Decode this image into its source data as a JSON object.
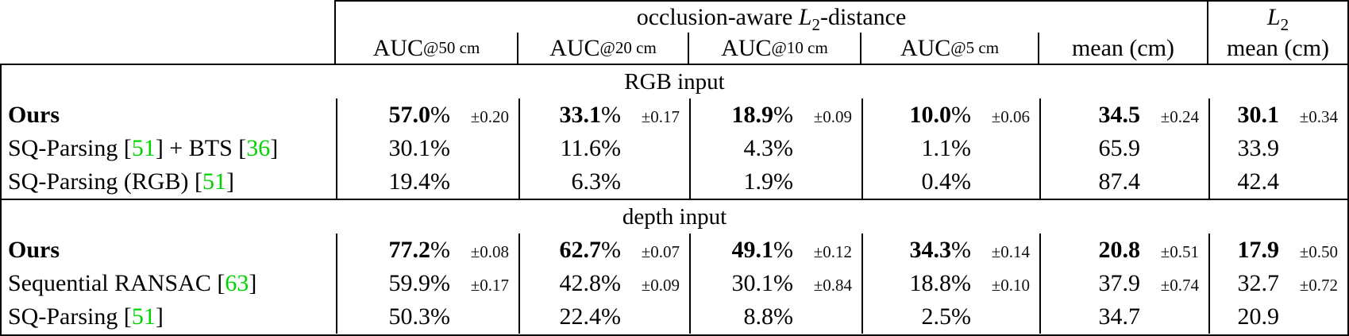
{
  "colors": {
    "citation_green": "#00d400",
    "border_black": "#000000",
    "text_black": "#000000",
    "background": "#ffffff"
  },
  "header": {
    "group1": {
      "title_prefix": "occlusion-aware ",
      "math_L": "L",
      "math_sub": "2",
      "title_suffix": "-distance",
      "cols": [
        {
          "base": "AUC",
          "sub": "@50 cm"
        },
        {
          "base": "AUC",
          "sub": "@20 cm"
        },
        {
          "base": "AUC",
          "sub": "@10 cm"
        },
        {
          "base": "AUC",
          "sub": "@5 cm"
        },
        {
          "label": "mean (cm)"
        }
      ]
    },
    "group2": {
      "math_L": "L",
      "math_sub": "2",
      "label": "mean (cm)"
    }
  },
  "sections": [
    {
      "title": "RGB input",
      "rows": [
        {
          "bold": true,
          "label": [
            {
              "t": "Ours"
            }
          ],
          "cells": [
            {
              "v": "57.0",
              "u": "%",
              "pm": "±0.20"
            },
            {
              "v": "33.1",
              "u": "%",
              "pm": "±0.17"
            },
            {
              "v": "18.9",
              "u": "%",
              "pm": "±0.09"
            },
            {
              "v": "10.0",
              "u": "%",
              "pm": "±0.06"
            },
            {
              "v": "34.5",
              "u": "",
              "pm": "±0.24"
            },
            {
              "v": "30.1",
              "u": "",
              "pm": "±0.34"
            }
          ]
        },
        {
          "bold": false,
          "label": [
            {
              "t": "SQ-Parsing ["
            },
            {
              "t": "51",
              "cite": true
            },
            {
              "t": "] + BTS ["
            },
            {
              "t": "36",
              "cite": true
            },
            {
              "t": "]"
            }
          ],
          "cells": [
            {
              "v": "30.1",
              "u": "%",
              "pm": ""
            },
            {
              "v": "11.6",
              "u": "%",
              "pm": ""
            },
            {
              "v": "4.3",
              "u": "%",
              "pm": ""
            },
            {
              "v": "1.1",
              "u": "%",
              "pm": ""
            },
            {
              "v": "65.9",
              "u": "",
              "pm": ""
            },
            {
              "v": "33.9",
              "u": "",
              "pm": ""
            }
          ]
        },
        {
          "bold": false,
          "label": [
            {
              "t": "SQ-Parsing (RGB) ["
            },
            {
              "t": "51",
              "cite": true
            },
            {
              "t": "]"
            }
          ],
          "cells": [
            {
              "v": "19.4",
              "u": "%",
              "pm": ""
            },
            {
              "v": "6.3",
              "u": "%",
              "pm": ""
            },
            {
              "v": "1.9",
              "u": "%",
              "pm": ""
            },
            {
              "v": "0.4",
              "u": "%",
              "pm": ""
            },
            {
              "v": "87.4",
              "u": "",
              "pm": ""
            },
            {
              "v": "42.4",
              "u": "",
              "pm": ""
            }
          ]
        }
      ]
    },
    {
      "title": "depth input",
      "rows": [
        {
          "bold": true,
          "label": [
            {
              "t": "Ours"
            }
          ],
          "cells": [
            {
              "v": "77.2",
              "u": "%",
              "pm": "±0.08"
            },
            {
              "v": "62.7",
              "u": "%",
              "pm": "±0.07"
            },
            {
              "v": "49.1",
              "u": "%",
              "pm": "±0.12"
            },
            {
              "v": "34.3",
              "u": "%",
              "pm": "±0.14"
            },
            {
              "v": "20.8",
              "u": "",
              "pm": "±0.51"
            },
            {
              "v": "17.9",
              "u": "",
              "pm": "±0.50"
            }
          ]
        },
        {
          "bold": false,
          "label": [
            {
              "t": "Sequential RANSAC ["
            },
            {
              "t": "63",
              "cite": true
            },
            {
              "t": "]"
            }
          ],
          "cells": [
            {
              "v": "59.9",
              "u": "%",
              "pm": "±0.17"
            },
            {
              "v": "42.8",
              "u": "%",
              "pm": "±0.09"
            },
            {
              "v": "30.1",
              "u": "%",
              "pm": "±0.84"
            },
            {
              "v": "18.8",
              "u": "%",
              "pm": "±0.10"
            },
            {
              "v": "37.9",
              "u": "",
              "pm": "±0.74"
            },
            {
              "v": "32.7",
              "u": "",
              "pm": "±0.72"
            }
          ]
        },
        {
          "bold": false,
          "label": [
            {
              "t": "SQ-Parsing ["
            },
            {
              "t": "51",
              "cite": true
            },
            {
              "t": "]"
            }
          ],
          "cells": [
            {
              "v": "50.3",
              "u": "%",
              "pm": ""
            },
            {
              "v": "22.4",
              "u": "%",
              "pm": ""
            },
            {
              "v": "8.8",
              "u": "%",
              "pm": ""
            },
            {
              "v": "2.5",
              "u": "%",
              "pm": ""
            },
            {
              "v": "34.7",
              "u": "",
              "pm": ""
            },
            {
              "v": "20.9",
              "u": "",
              "pm": ""
            }
          ]
        }
      ]
    }
  ]
}
